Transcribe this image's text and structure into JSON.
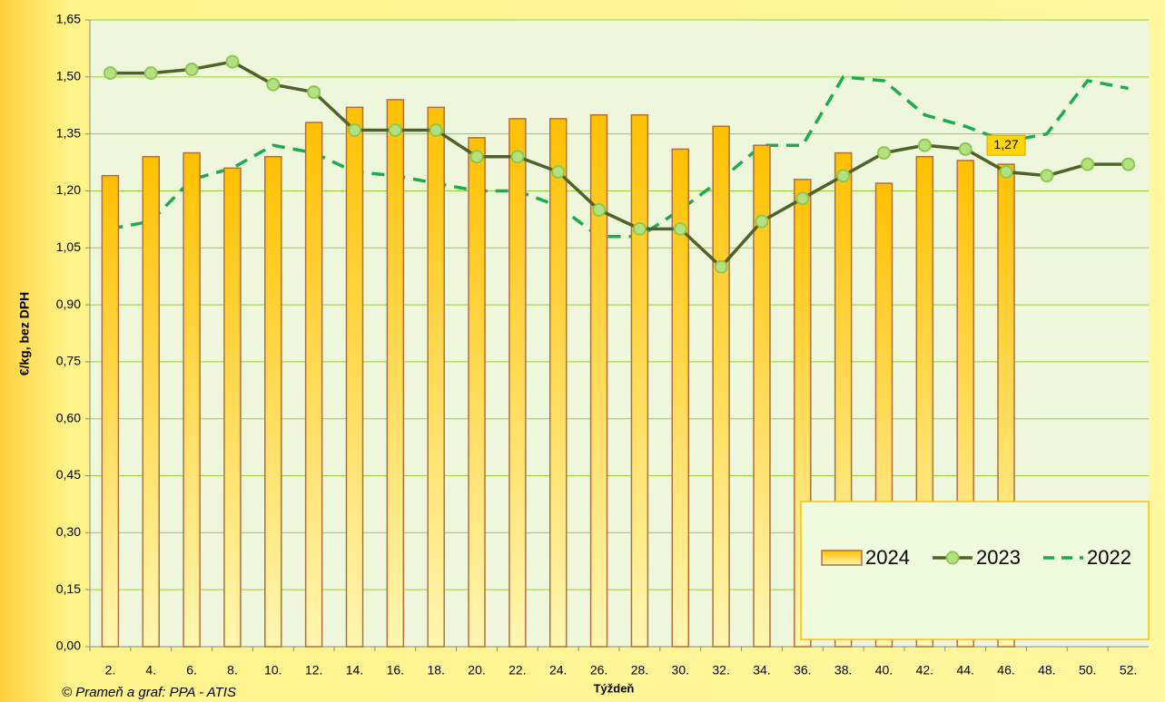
{
  "chart_data": {
    "type": "bar-line",
    "x_label": "Týždeň",
    "y_label": "€/kg, bez DPH",
    "footer": "© Prameň a graf: PPA - ATIS",
    "categories": [
      "2.",
      "4.",
      "6.",
      "8.",
      "10.",
      "12.",
      "14.",
      "16.",
      "18.",
      "20.",
      "22.",
      "24.",
      "26.",
      "28.",
      "30.",
      "32.",
      "34.",
      "36.",
      "38.",
      "40.",
      "42.",
      "44.",
      "46.",
      "48.",
      "50.",
      "52."
    ],
    "series": [
      {
        "name": "2024",
        "type": "bar",
        "color": "#ffc000",
        "values": [
          1.24,
          1.29,
          1.3,
          1.26,
          1.29,
          1.38,
          1.42,
          1.44,
          1.42,
          1.34,
          1.39,
          1.39,
          1.4,
          1.4,
          1.31,
          1.37,
          1.32,
          1.23,
          1.3,
          1.22,
          1.29,
          1.28,
          1.27,
          null,
          null,
          null
        ],
        "value_labels": [
          null,
          null,
          null,
          null,
          null,
          null,
          null,
          null,
          null,
          null,
          null,
          null,
          null,
          null,
          null,
          null,
          null,
          null,
          null,
          null,
          null,
          null,
          "1,27",
          null,
          null,
          null
        ]
      },
      {
        "name": "2023",
        "type": "line",
        "color": "#4f6228",
        "marker_color": "#b4e080",
        "values": [
          1.51,
          1.51,
          1.52,
          1.54,
          1.48,
          1.46,
          1.36,
          1.36,
          1.36,
          1.29,
          1.29,
          1.25,
          1.15,
          1.1,
          1.1,
          1.0,
          1.12,
          1.18,
          1.24,
          1.3,
          1.32,
          1.31,
          1.25,
          1.24,
          1.27,
          1.27
        ]
      },
      {
        "name": "2022",
        "type": "dashed-line",
        "color": "#1eaa50",
        "values": [
          1.1,
          1.12,
          1.23,
          1.26,
          1.32,
          1.3,
          1.25,
          1.24,
          1.22,
          1.2,
          1.2,
          1.16,
          1.08,
          1.08,
          1.15,
          1.23,
          1.32,
          1.32,
          1.5,
          1.49,
          1.4,
          1.37,
          1.33,
          1.35,
          1.49,
          1.47
        ]
      }
    ],
    "ylim": [
      0,
      1.65
    ],
    "yticks": [
      {
        "value": 0,
        "label": "0,00"
      },
      {
        "value": 0.15,
        "label": "0,15"
      },
      {
        "value": 0.3,
        "label": "0,30"
      },
      {
        "value": 0.45,
        "label": "0,45"
      },
      {
        "value": 0.6,
        "label": "0,60"
      },
      {
        "value": 0.75,
        "label": "0,75"
      },
      {
        "value": 0.9,
        "label": "0,90"
      },
      {
        "value": 1.05,
        "label": "1,05"
      },
      {
        "value": 1.2,
        "label": "1,20"
      },
      {
        "value": 1.35,
        "label": "1,35"
      },
      {
        "value": 1.5,
        "label": "1,50"
      },
      {
        "value": 1.65,
        "label": "1,65"
      }
    ],
    "grid": true,
    "legend": "bottom-right"
  }
}
